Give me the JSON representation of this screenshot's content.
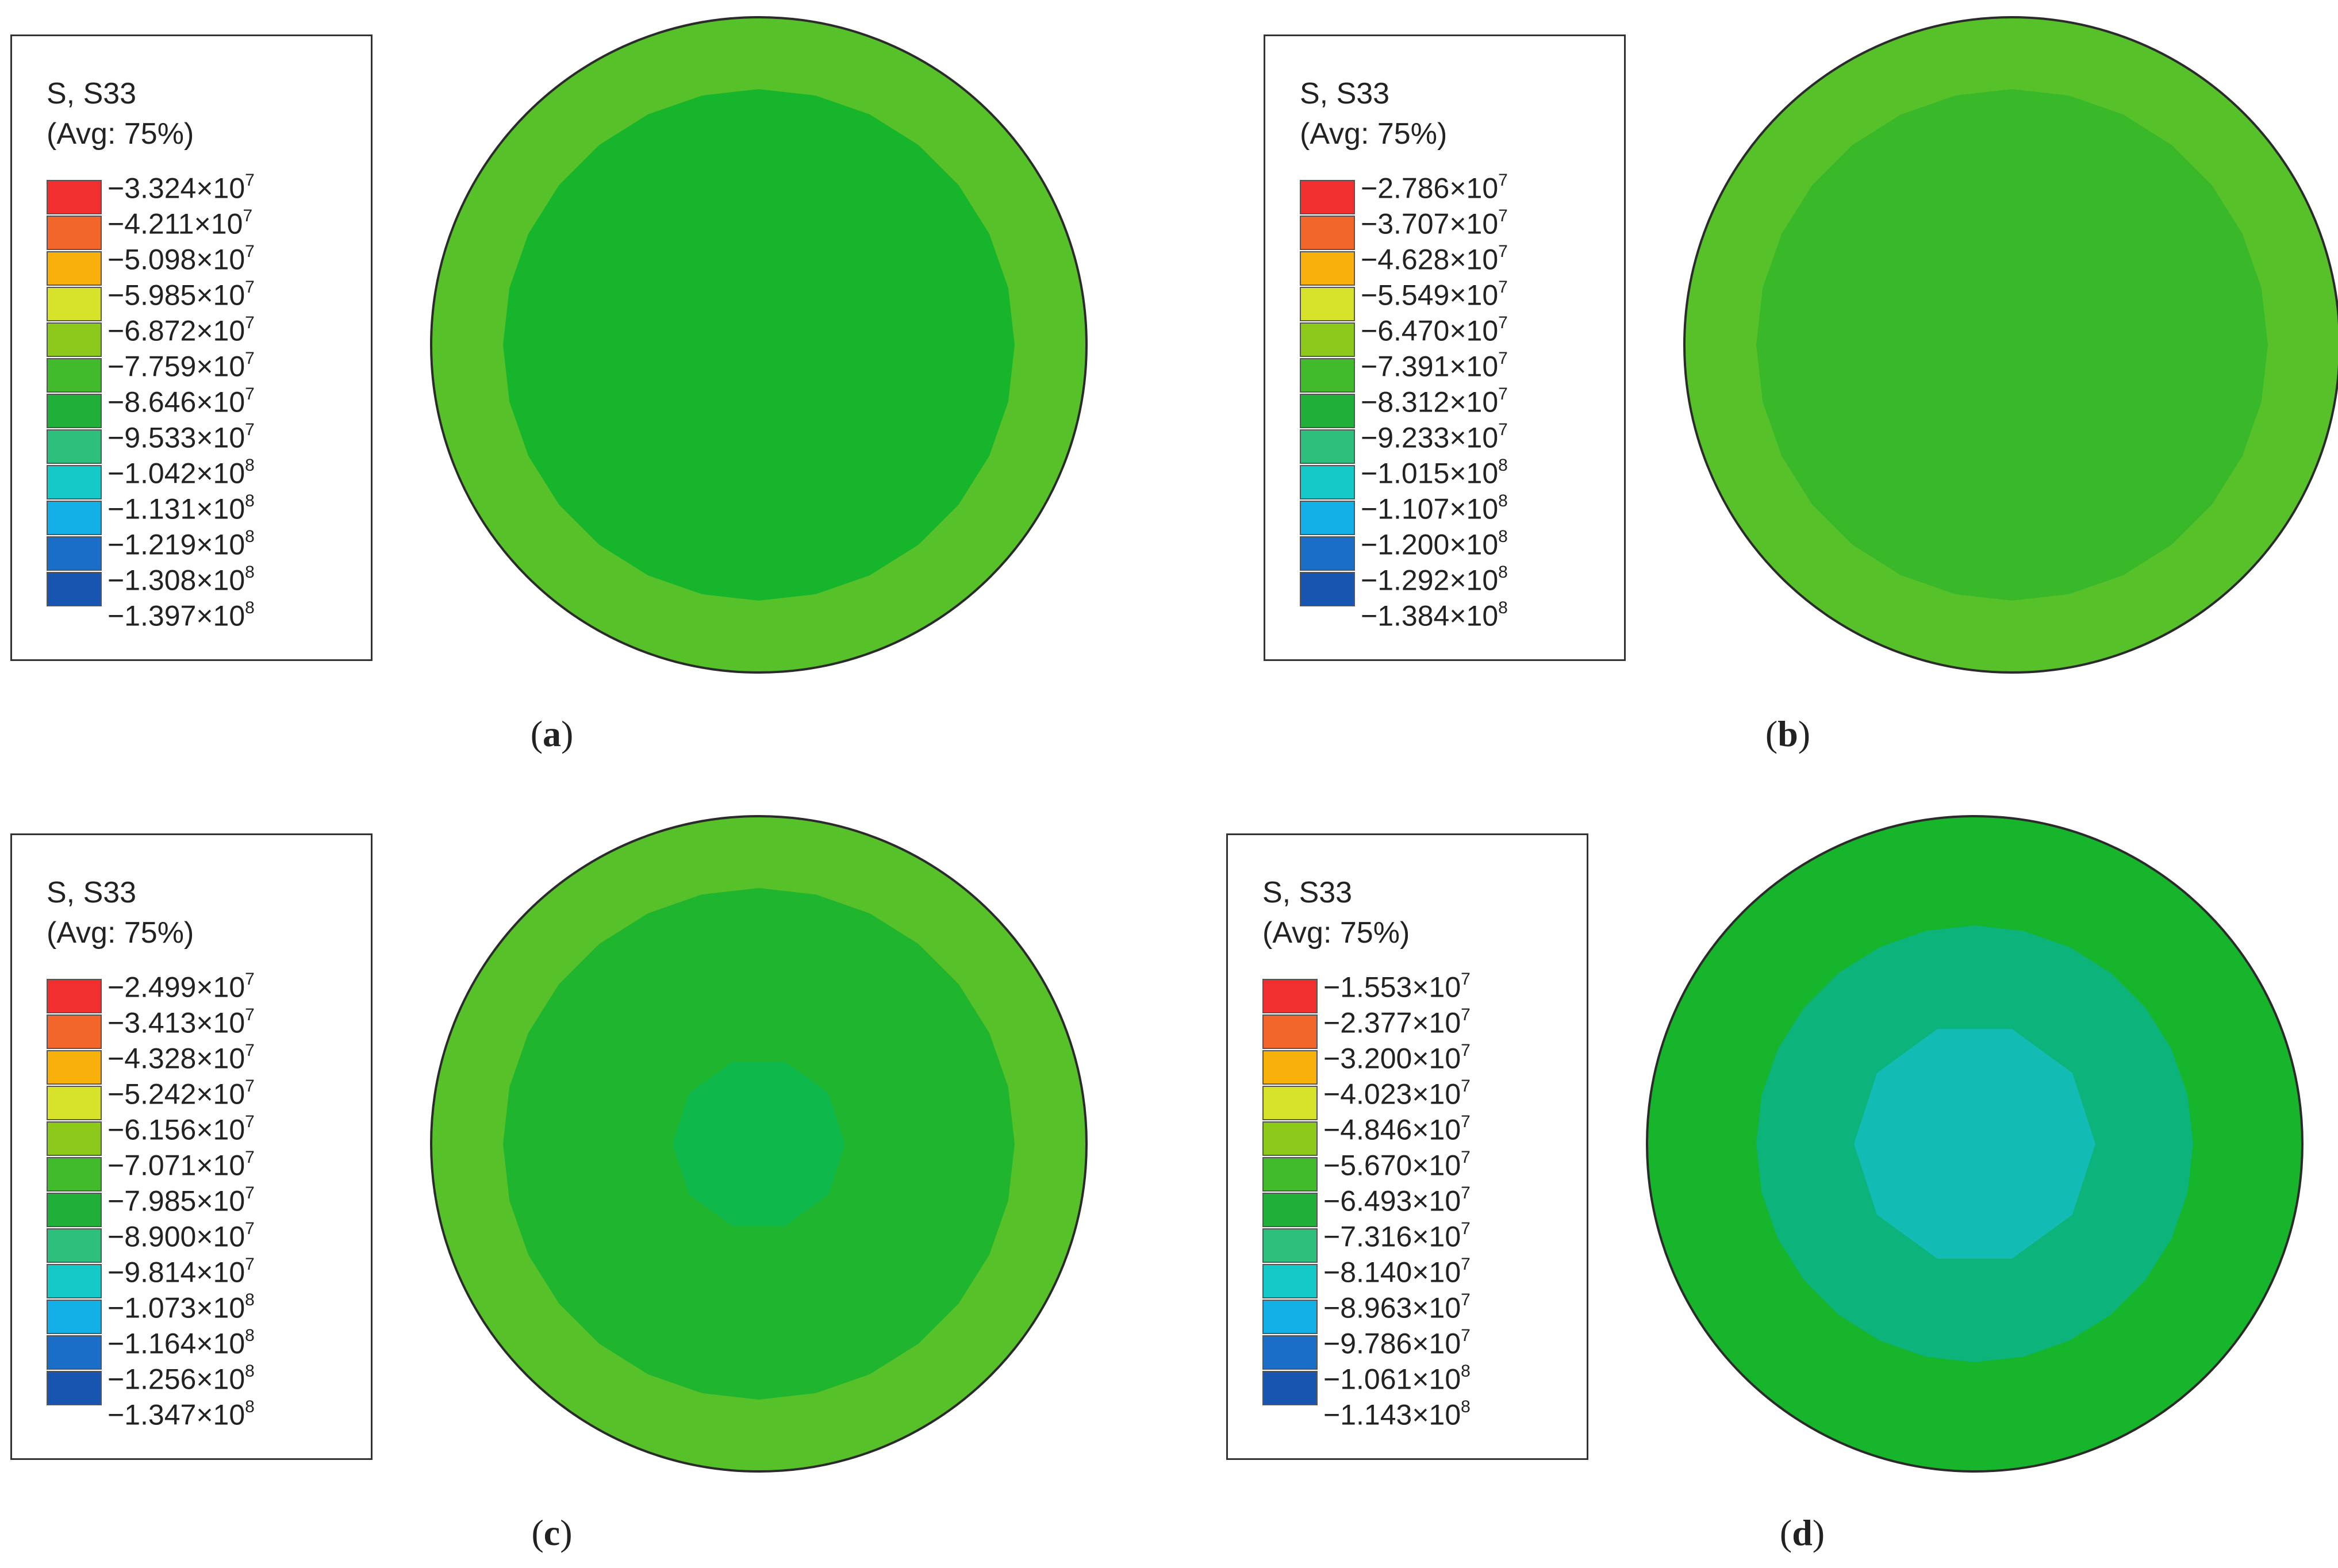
{
  "panels": [
    {
      "id": "a",
      "caption_letter": "a",
      "legend_title_1": "S, S33",
      "legend_title_2": "(Avg: 75%)",
      "legend_values": [
        "−3.324×10",
        "−4.211×10",
        "−5.098×10",
        "−5.985×10",
        "−6.872×10",
        "−7.759×10",
        "−8.646×10",
        "−9.533×10",
        "−1.042×10",
        "−1.131×10",
        "−1.219×10",
        "−1.308×10",
        "−1.397×10"
      ],
      "legend_exponents": [
        "7",
        "7",
        "7",
        "7",
        "7",
        "7",
        "7",
        "7",
        "8",
        "8",
        "8",
        "8",
        "8"
      ],
      "rings": [
        "#57c12a",
        "#17b52b"
      ]
    },
    {
      "id": "b",
      "caption_letter": "b",
      "legend_title_1": "S, S33",
      "legend_title_2": "(Avg: 75%)",
      "legend_values": [
        "−2.786×10",
        "−3.707×10",
        "−4.628×10",
        "−5.549×10",
        "−6.470×10",
        "−7.391×10",
        "−8.312×10",
        "−9.233×10",
        "−1.015×10",
        "−1.107×10",
        "−1.200×10",
        "−1.292×10",
        "−1.384×10"
      ],
      "legend_exponents": [
        "7",
        "7",
        "7",
        "7",
        "7",
        "7",
        "7",
        "7",
        "8",
        "8",
        "8",
        "8",
        "8"
      ],
      "rings": [
        "#57c12a",
        "#39b82a"
      ]
    },
    {
      "id": "c",
      "caption_letter": "c",
      "legend_title_1": "S, S33",
      "legend_title_2": "(Avg: 75%)",
      "legend_values": [
        "−2.499×10",
        "−3.413×10",
        "−4.328×10",
        "−5.242×10",
        "−6.156×10",
        "−7.071×10",
        "−7.985×10",
        "−8.900×10",
        "−9.814×10",
        "−1.073×10",
        "−1.164×10",
        "−1.256×10",
        "−1.347×10"
      ],
      "legend_exponents": [
        "7",
        "7",
        "7",
        "7",
        "7",
        "7",
        "7",
        "7",
        "7",
        "8",
        "8",
        "8",
        "8"
      ],
      "rings": [
        "#57c12a",
        "#1fb52e",
        "#0fb84a"
      ]
    },
    {
      "id": "d",
      "caption_letter": "d",
      "legend_title_1": "S, S33",
      "legend_title_2": "(Avg: 75%)",
      "legend_values": [
        "−1.553×10",
        "−2.377×10",
        "−3.200×10",
        "−4.023×10",
        "−4.846×10",
        "−5.670×10",
        "−6.493×10",
        "−7.316×10",
        "−8.140×10",
        "−8.963×10",
        "−9.786×10",
        "−1.061×10",
        "−1.143×10"
      ],
      "legend_exponents": [
        "7",
        "7",
        "7",
        "7",
        "7",
        "7",
        "7",
        "7",
        "7",
        "7",
        "7",
        "8",
        "8"
      ],
      "rings": [
        "#17b52b",
        "#0cb37a",
        "#12bcb4"
      ]
    }
  ],
  "legend_colors": [
    "#f22f2f",
    "#f2662c",
    "#f7b10a",
    "#d7e32a",
    "#8cc91b",
    "#41bb2b",
    "#20b03a",
    "#2dbf7c",
    "#14c9c8",
    "#12b0e6",
    "#1b6ec8",
    "#1755b0"
  ]
}
